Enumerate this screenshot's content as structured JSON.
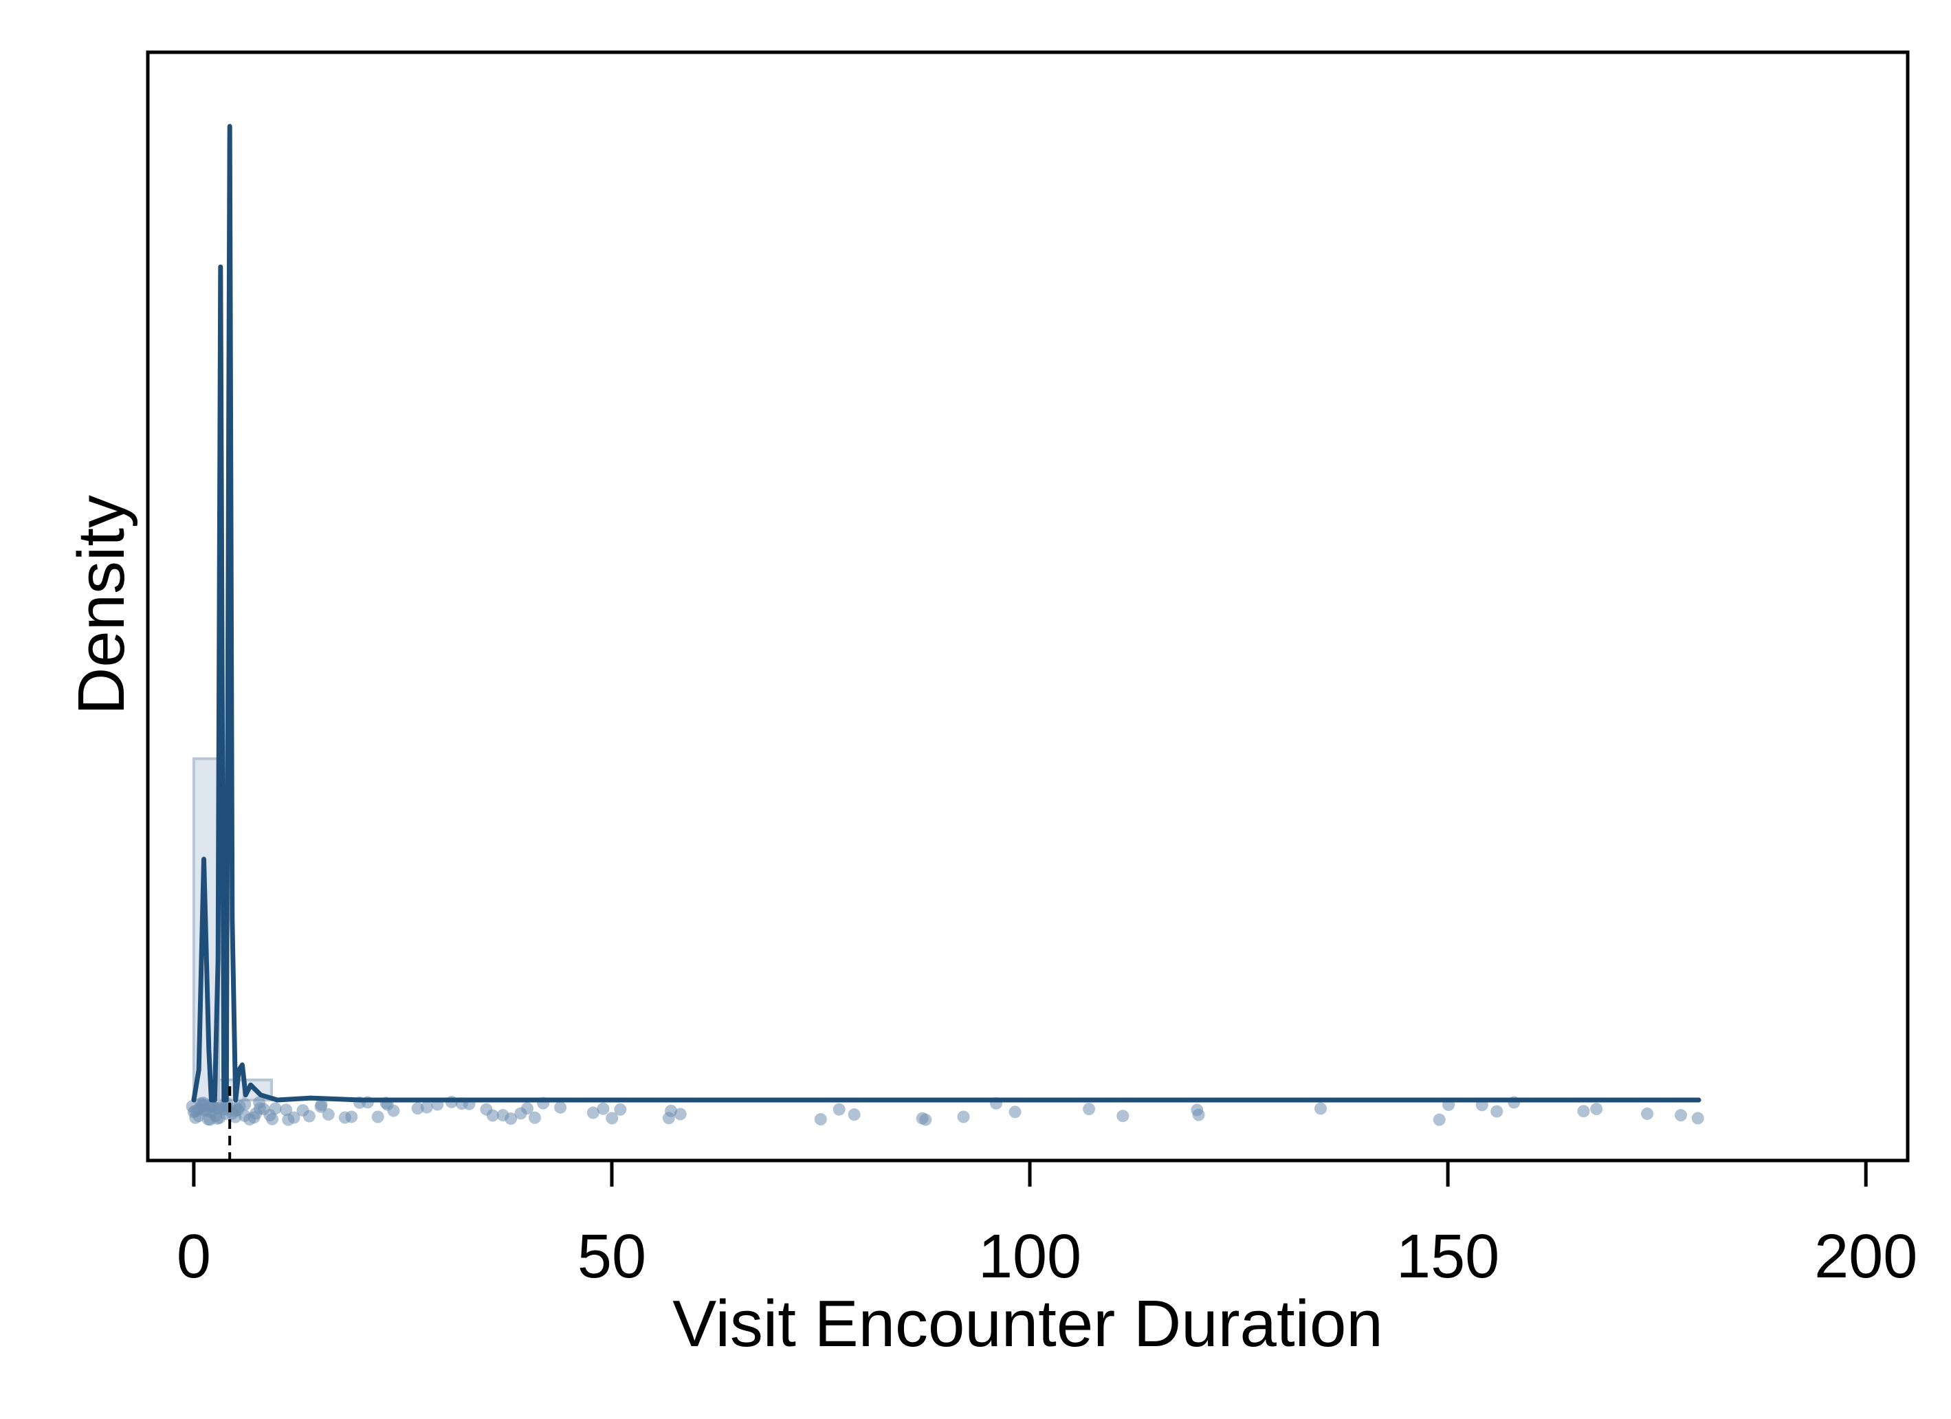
{
  "chart_data": {
    "type": "histogram-density",
    "title": "",
    "xlabel": "Visit Encounter Duration",
    "ylabel": "Density",
    "xlim": [
      -5.5,
      205
    ],
    "ylim": [
      0,
      1
    ],
    "x_ticks": [
      {
        "value": 0,
        "label": "0"
      },
      {
        "value": 50,
        "label": "50"
      },
      {
        "value": 100,
        "label": "100"
      },
      {
        "value": 150,
        "label": "150"
      },
      {
        "value": 200,
        "label": "200"
      }
    ],
    "y_ticks_shown": false,
    "grid": false,
    "legend": "none",
    "colors": {
      "line": "#1f4e79",
      "points": "#6f8fb0",
      "histogram_fill": "#dde5ee",
      "histogram_edge": "#b8c6d6",
      "axes": "#000000"
    },
    "histogram": {
      "bins": [
        {
          "x0": 0,
          "x1": 3,
          "density": 0.34
        },
        {
          "x0": 3,
          "x1": 6,
          "density": 0.02
        },
        {
          "x0": 6,
          "x1": 9.3,
          "density": 0.02
        }
      ]
    },
    "density_curve": {
      "x": [
        0,
        0.6,
        1.2,
        1.8,
        2.1,
        2.5,
        2.9,
        3.2,
        3.6,
        3.9,
        4.3,
        4.6,
        5.0,
        5.4,
        5.8,
        6.2,
        6.8,
        8,
        10,
        14,
        20,
        40,
        80,
        120,
        180
      ],
      "y": [
        0.0,
        0.03,
        0.24,
        0.05,
        0.0,
        0.0,
        0.14,
        0.83,
        0.0,
        0.0,
        0.97,
        0.18,
        0.0,
        0.03,
        0.035,
        0.005,
        0.015,
        0.005,
        0.0,
        0.002,
        0.0,
        0.0,
        0.0,
        0.0,
        0.0
      ]
    },
    "median_marker_x": 4.3,
    "observations": [
      0,
      0,
      0.2,
      0.4,
      0.5,
      0.7,
      0.8,
      1,
      1,
      1.2,
      1.3,
      1.5,
      1.6,
      1.8,
      2,
      2,
      2.1,
      2.3,
      2.5,
      2.8,
      3,
      3,
      3.2,
      3.4,
      3.5,
      3.7,
      4,
      4,
      4.2,
      4.5,
      4.8,
      5,
      5,
      5.3,
      5.6,
      6,
      6.2,
      6.5,
      7,
      7.3,
      7.8,
      8,
      8.5,
      9,
      9.5,
      10,
      11,
      11.5,
      12,
      13,
      14,
      15,
      15.5,
      16,
      18,
      19,
      20,
      21,
      22,
      23,
      23,
      24,
      27,
      28,
      29,
      31,
      32,
      33,
      35,
      36,
      37,
      38,
      39,
      40,
      41,
      42,
      44,
      48,
      49,
      50,
      51,
      57,
      57,
      58,
      75,
      77,
      79,
      87,
      87.5,
      92,
      96,
      98,
      107,
      111,
      120,
      120,
      135,
      149,
      150,
      154,
      156,
      158,
      166,
      168,
      174,
      178,
      180
    ]
  }
}
